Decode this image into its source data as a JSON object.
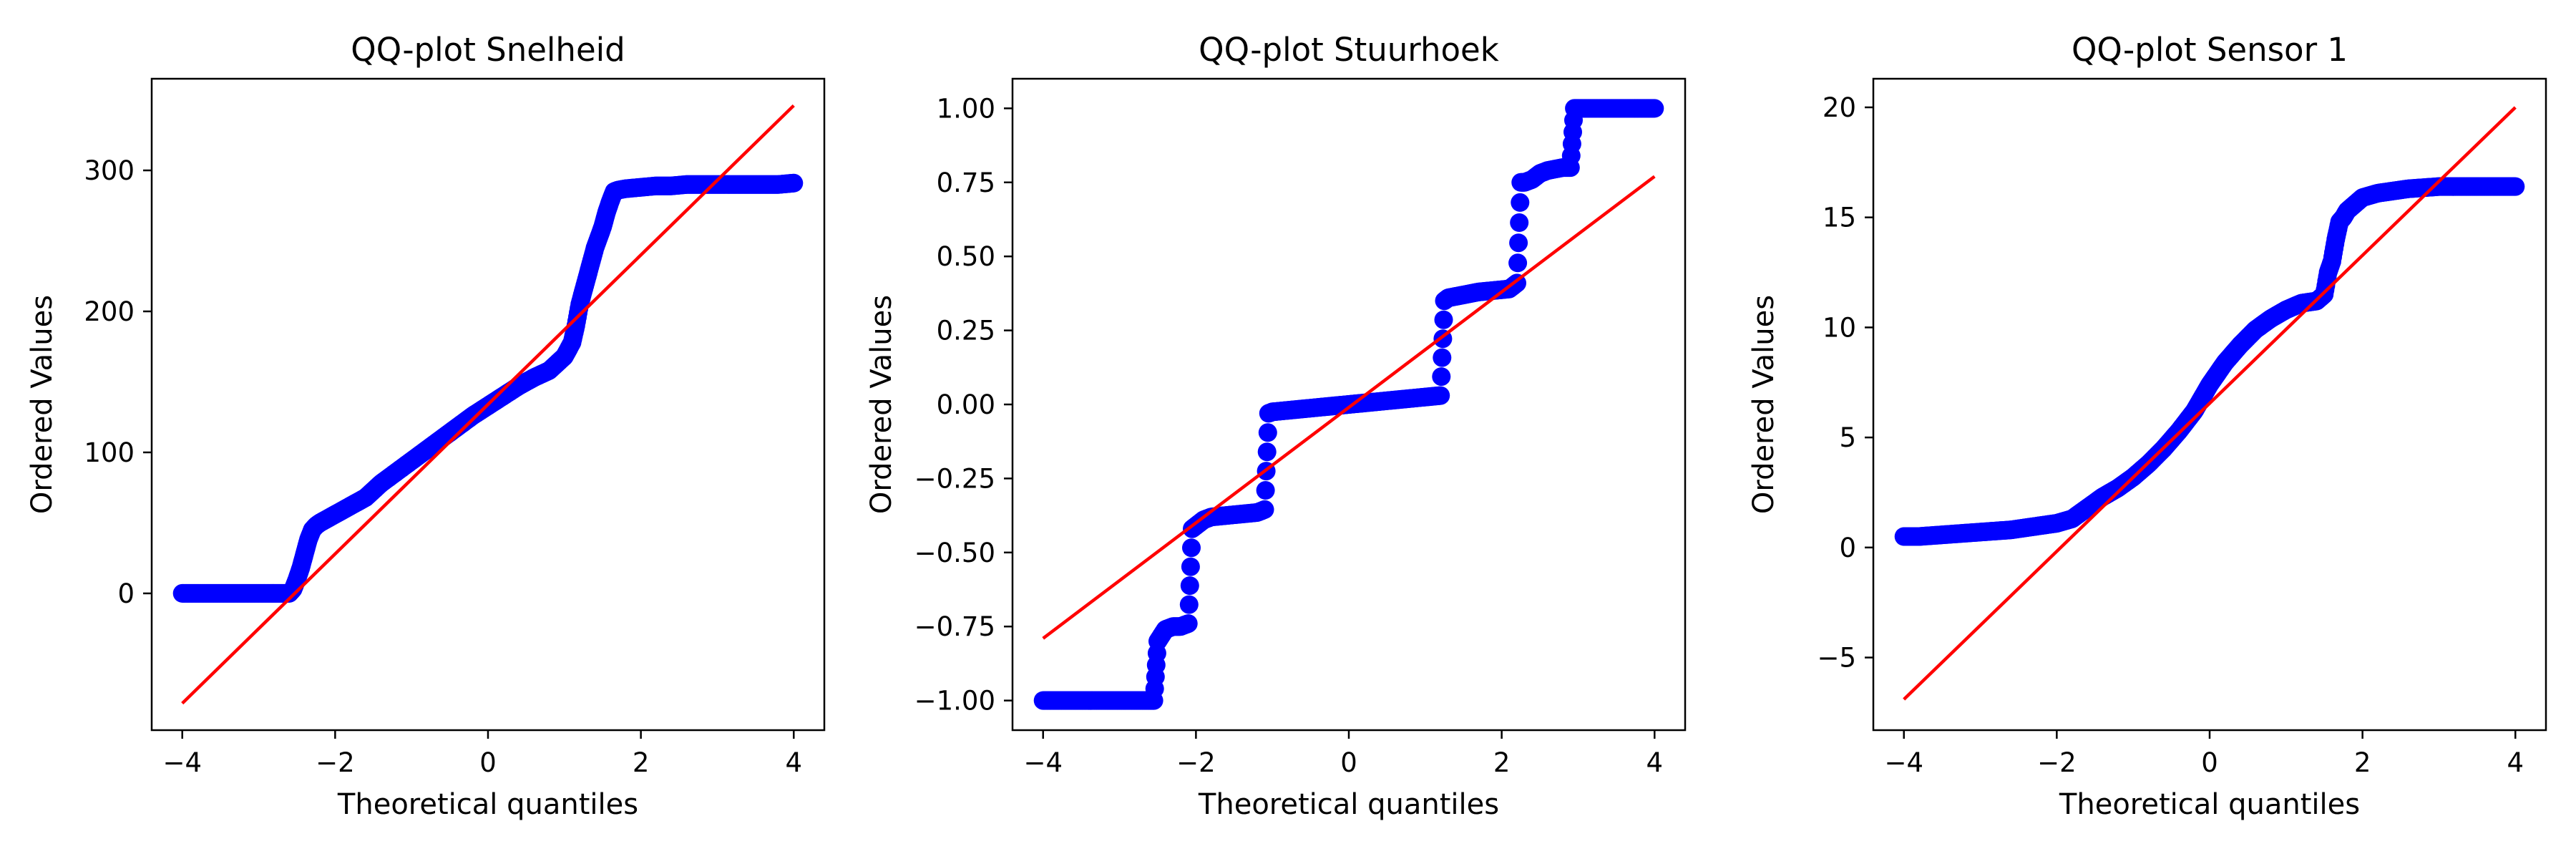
{
  "chart_data": [
    {
      "type": "scatter",
      "title": "QQ-plot Snelheid",
      "xlabel": "Theoretical quantiles",
      "ylabel": "Ordered Values",
      "xlim": [
        -4.4,
        4.4
      ],
      "ylim": [
        -97,
        365
      ],
      "xticks": [
        -4,
        -2,
        0,
        2,
        4
      ],
      "xtick_labels": [
        "−4",
        "−2",
        "0",
        "2",
        "4"
      ],
      "yticks": [
        0,
        100,
        200,
        300
      ],
      "ytick_labels": [
        "0",
        "100",
        "200",
        "300"
      ],
      "grid": false,
      "marker_color": "#0000ff",
      "line_color": "#ff0000",
      "fit_line": {
        "x": [
          -4.0,
          4.0
        ],
        "y": [
          -78,
          346
        ]
      },
      "series": [
        {
          "x": [
            -4.0,
            -3.8,
            -3.6,
            -3.4,
            -3.2,
            -3.0,
            -2.8,
            -2.6,
            -2.55,
            -2.5,
            -2.45,
            -2.4,
            -2.35,
            -2.3,
            -2.25,
            -2.2,
            -2.1,
            -2.0,
            -1.8,
            -1.6,
            -1.4,
            -1.2,
            -1.0,
            -0.8,
            -0.6,
            -0.4,
            -0.2,
            0.0,
            0.2,
            0.4,
            0.6,
            0.8,
            1.0,
            1.1,
            1.15,
            1.2,
            1.3,
            1.4,
            1.5,
            1.55,
            1.6,
            1.65,
            1.7,
            1.8,
            2.0,
            2.2,
            2.4,
            2.6,
            2.8,
            3.0,
            3.2,
            3.4,
            3.6,
            3.8,
            4.0
          ],
          "y": [
            0,
            0,
            0,
            0,
            0,
            0,
            0,
            0,
            3,
            10,
            18,
            28,
            38,
            45,
            48,
            50,
            53,
            56,
            62,
            68,
            78,
            86,
            94,
            102,
            110,
            118,
            126,
            133,
            140,
            147,
            153,
            158,
            168,
            178,
            190,
            205,
            225,
            245,
            260,
            270,
            278,
            285,
            286,
            287,
            288,
            289,
            289,
            290,
            290,
            290,
            290,
            290,
            290,
            290,
            291
          ]
        }
      ]
    },
    {
      "type": "scatter",
      "title": "QQ-plot Stuurhoek",
      "xlabel": "Theoretical quantiles",
      "ylabel": "Ordered Values",
      "xlim": [
        -4.4,
        4.4
      ],
      "ylim": [
        -1.1,
        1.1
      ],
      "xticks": [
        -4,
        -2,
        0,
        2,
        4
      ],
      "xtick_labels": [
        "−4",
        "−2",
        "0",
        "2",
        "4"
      ],
      "yticks": [
        -1.0,
        -0.75,
        -0.5,
        -0.25,
        0.0,
        0.25,
        0.5,
        0.75,
        1.0
      ],
      "ytick_labels": [
        "−1.00",
        "−0.75",
        "−0.50",
        "−0.25",
        "0.00",
        "0.25",
        "0.50",
        "0.75",
        "1.00"
      ],
      "grid": false,
      "marker_color": "#0000ff",
      "line_color": "#ff0000",
      "fit_line": {
        "x": [
          -4.0,
          4.0
        ],
        "y": [
          -0.79,
          0.77
        ]
      },
      "series": [
        {
          "x": [
            -4.0,
            -3.8,
            -3.6,
            -3.4,
            -3.2,
            -3.0,
            -2.8,
            -2.6,
            -2.55,
            -2.5,
            -2.45,
            -2.4,
            -2.3,
            -2.2,
            -2.1,
            -2.05,
            -2.0,
            -1.95,
            -1.9,
            -1.8,
            -1.6,
            -1.4,
            -1.2,
            -1.1,
            -1.05,
            -1.0,
            -0.8,
            -0.6,
            -0.4,
            -0.2,
            0.0,
            0.2,
            0.4,
            0.6,
            0.8,
            1.0,
            1.2,
            1.25,
            1.3,
            1.5,
            1.7,
            1.9,
            2.1,
            2.2,
            2.25,
            2.3,
            2.4,
            2.5,
            2.6,
            2.8,
            2.9,
            2.95,
            3.0,
            3.2,
            3.4,
            3.6,
            3.8,
            4.0
          ],
          "y": [
            -1.0,
            -1.0,
            -1.0,
            -1.0,
            -1.0,
            -1.0,
            -1.0,
            -1.0,
            -1.0,
            -0.8,
            -0.78,
            -0.76,
            -0.75,
            -0.75,
            -0.74,
            -0.42,
            -0.41,
            -0.4,
            -0.39,
            -0.38,
            -0.375,
            -0.37,
            -0.365,
            -0.355,
            -0.03,
            -0.025,
            -0.02,
            -0.015,
            -0.01,
            -0.005,
            0.0,
            0.005,
            0.01,
            0.015,
            0.02,
            0.025,
            0.03,
            0.35,
            0.36,
            0.37,
            0.38,
            0.385,
            0.39,
            0.41,
            0.75,
            0.75,
            0.76,
            0.78,
            0.79,
            0.8,
            0.8,
            1.0,
            1.0,
            1.0,
            1.0,
            1.0,
            1.0,
            1.0
          ]
        }
      ]
    },
    {
      "type": "scatter",
      "title": "QQ-plot Sensor 1",
      "xlabel": "Theoretical quantiles",
      "ylabel": "Ordered Values",
      "xlim": [
        -4.4,
        4.4
      ],
      "ylim": [
        -8.3,
        21.3
      ],
      "xticks": [
        -4,
        -2,
        0,
        2,
        4
      ],
      "xtick_labels": [
        "−4",
        "−2",
        "0",
        "2",
        "4"
      ],
      "yticks": [
        -5,
        0,
        5,
        10,
        15,
        20
      ],
      "ytick_labels": [
        "−5",
        "0",
        "5",
        "10",
        "15",
        "20"
      ],
      "grid": false,
      "marker_color": "#0000ff",
      "line_color": "#ff0000",
      "fit_line": {
        "x": [
          -4.0,
          4.0
        ],
        "y": [
          -6.9,
          20.0
        ]
      },
      "series": [
        {
          "x": [
            -4.0,
            -3.8,
            -3.6,
            -3.4,
            -3.2,
            -3.0,
            -2.8,
            -2.6,
            -2.4,
            -2.2,
            -2.0,
            -1.8,
            -1.6,
            -1.4,
            -1.2,
            -1.0,
            -0.8,
            -0.6,
            -0.4,
            -0.2,
            0.0,
            0.2,
            0.4,
            0.6,
            0.8,
            1.0,
            1.2,
            1.4,
            1.5,
            1.55,
            1.6,
            1.65,
            1.7,
            1.75,
            1.8,
            1.9,
            2.0,
            2.2,
            2.4,
            2.6,
            2.8,
            3.0,
            3.2,
            3.4,
            3.6,
            3.8,
            4.0
          ],
          "y": [
            0.5,
            0.5,
            0.55,
            0.6,
            0.65,
            0.7,
            0.75,
            0.8,
            0.9,
            1.0,
            1.1,
            1.3,
            1.8,
            2.3,
            2.7,
            3.2,
            3.8,
            4.5,
            5.3,
            6.2,
            7.4,
            8.4,
            9.2,
            9.9,
            10.4,
            10.8,
            11.1,
            11.2,
            11.5,
            12.5,
            13.0,
            14.0,
            14.8,
            15.0,
            15.3,
            15.6,
            15.9,
            16.1,
            16.2,
            16.3,
            16.35,
            16.4,
            16.4,
            16.4,
            16.4,
            16.4,
            16.4
          ]
        }
      ]
    }
  ]
}
